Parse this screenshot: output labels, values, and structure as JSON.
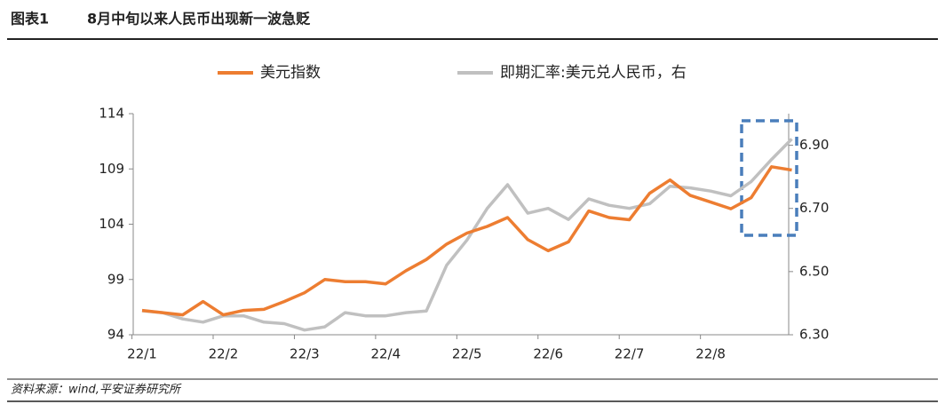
{
  "chart_data": {
    "type": "line",
    "label": "图表1",
    "title": "8月中旬以来人民币出现新一波急贬",
    "source": "资料来源：wind,平安证券研究所",
    "categories": [
      "22/1",
      null,
      null,
      null,
      "22/2",
      null,
      null,
      null,
      "22/3",
      null,
      null,
      null,
      "22/4",
      null,
      null,
      null,
      "22/5",
      null,
      null,
      null,
      "22/6",
      null,
      null,
      null,
      "22/7",
      null,
      null,
      null,
      "22/8",
      null,
      null,
      null,
      null
    ],
    "series": [
      {
        "name": "美元指数",
        "color": "#ed7d31",
        "axis": "y",
        "values": [
          96.2,
          96.0,
          95.8,
          97.0,
          95.8,
          96.2,
          96.3,
          97.0,
          97.8,
          99.0,
          98.8,
          98.8,
          98.6,
          99.8,
          100.8,
          102.2,
          103.2,
          103.8,
          104.6,
          102.6,
          101.6,
          102.4,
          105.2,
          104.6,
          104.4,
          106.8,
          108.0,
          106.6,
          106.0,
          105.4,
          106.4,
          109.2,
          108.9
        ]
      },
      {
        "name": "即期汇率:美元兑人民币，右",
        "color": "#c0c0c0",
        "axis": "y2",
        "values": [
          6.376,
          6.37,
          6.35,
          6.34,
          6.36,
          6.36,
          6.34,
          6.335,
          6.315,
          6.325,
          6.37,
          6.36,
          6.36,
          6.37,
          6.375,
          6.52,
          6.6,
          6.7,
          6.775,
          6.685,
          6.7,
          6.665,
          6.73,
          6.71,
          6.7,
          6.715,
          6.77,
          6.765,
          6.755,
          6.74,
          6.785,
          6.855,
          6.92
        ]
      }
    ],
    "ylim": [
      94,
      114
    ],
    "yticks": [
      94,
      99,
      104,
      109,
      114
    ],
    "y2lim": [
      6.3,
      7.0
    ],
    "y2ticks": [
      {
        "value": 6.3,
        "label": "6.30"
      },
      {
        "value": 6.5,
        "label": "6.50"
      },
      {
        "value": 6.7,
        "label": "6.70"
      },
      {
        "value": 6.9,
        "label": "6.90"
      }
    ],
    "grid": false,
    "legend": "top"
  }
}
